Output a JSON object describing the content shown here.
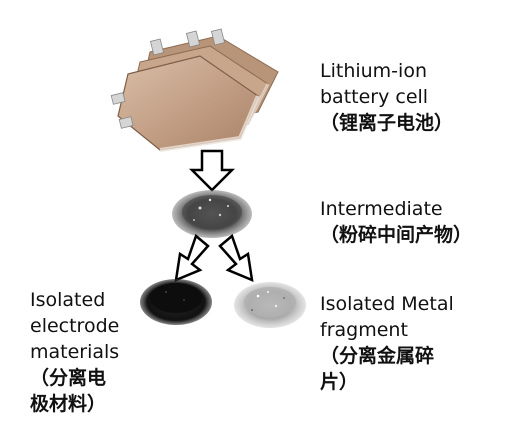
{
  "battery": {
    "line1": "Lithium-ion",
    "line2": "battery cell",
    "zh": "（锂离子电池）"
  },
  "intermediate": {
    "line1": "Intermediate",
    "zh": "（粉碎中间产物）"
  },
  "electrode": {
    "line1": "Isolated",
    "line2": "electrode",
    "line3": "materials",
    "zh1": "（分离电",
    "zh2": "极材料）"
  },
  "metal": {
    "line1": "Isolated Metal",
    "line2": "fragment",
    "zh1": "（分离金属碎",
    "zh2": "片）"
  },
  "colors": {
    "pouch": "#c9a88d",
    "powder_dark": "#151515",
    "powder_grey": "#9a9a9a",
    "arrow_stroke": "#000000"
  },
  "icons": [
    "down-arrow-icon",
    "down-left-arrow-icon",
    "down-right-arrow-icon"
  ]
}
